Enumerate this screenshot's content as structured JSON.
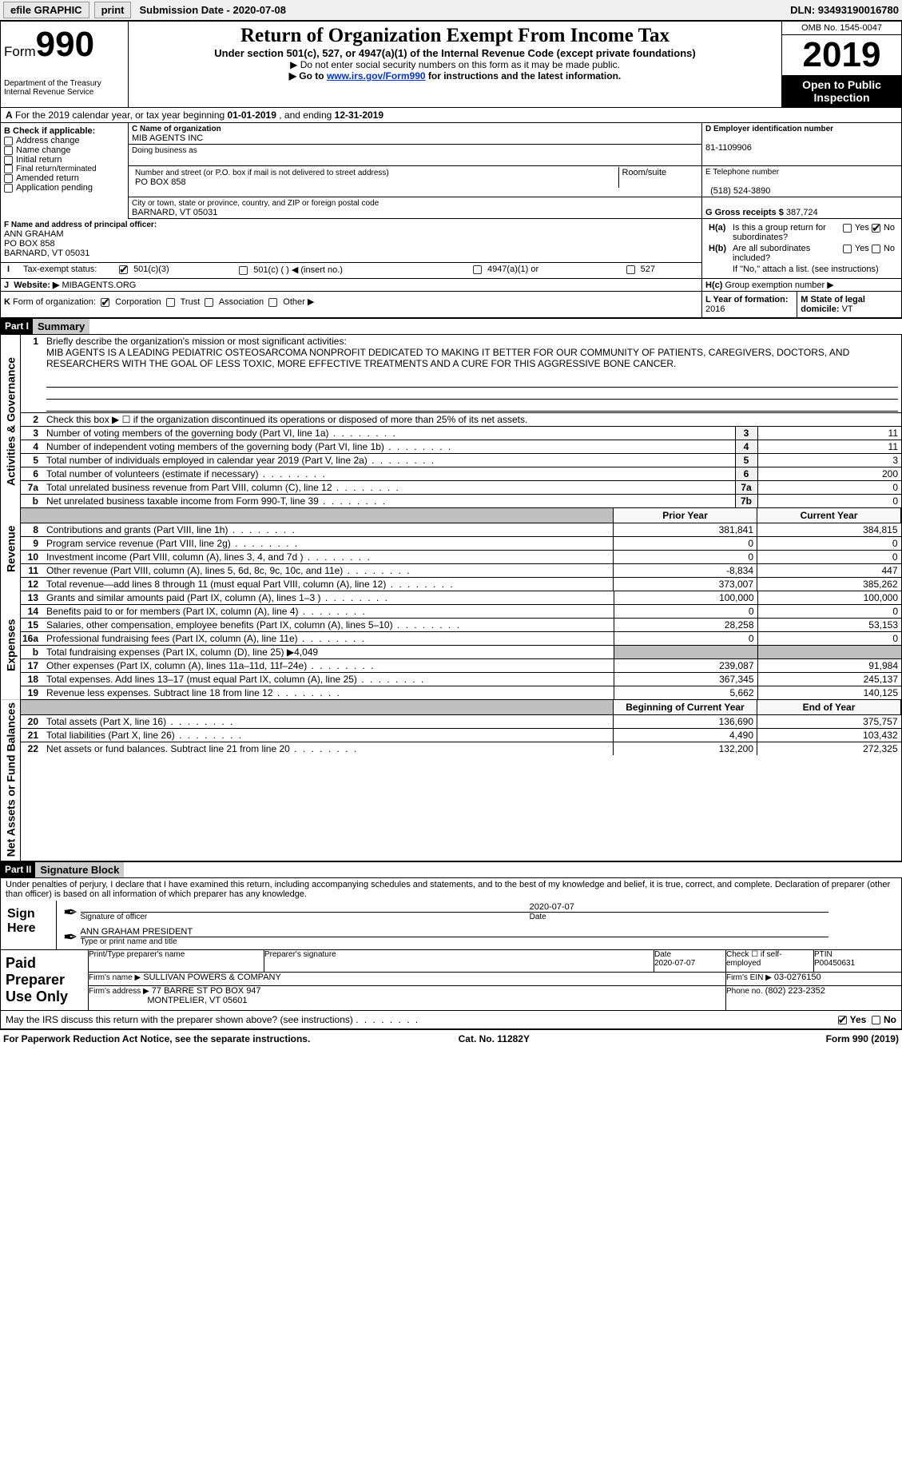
{
  "topbar": {
    "efile": "efile GRAPHIC",
    "print": "print",
    "submission": "Submission Date - 2020-07-08",
    "dln": "DLN: 93493190016780"
  },
  "header": {
    "form_label": "Form",
    "form_number": "990",
    "dept1": "Department of the Treasury",
    "dept2": "Internal Revenue Service",
    "title": "Return of Organization Exempt From Income Tax",
    "subtitle": "Under section 501(c), 527, or 4947(a)(1) of the Internal Revenue Code (except private foundations)",
    "note1": "▶ Do not enter social security numbers on this form as it may be made public.",
    "note2_pre": "▶ Go to ",
    "note2_link": "www.irs.gov/Form990",
    "note2_post": " for instructions and the latest information.",
    "omb": "OMB No. 1545-0047",
    "year": "2019",
    "inspect": "Open to Public Inspection"
  },
  "A": {
    "text_pre": "For the 2019 calendar year, or tax year beginning ",
    "begin": "01-01-2019",
    "mid": " , and ending ",
    "end": "12-31-2019"
  },
  "B": {
    "label": "B Check if applicable:",
    "opts": [
      "Address change",
      "Name change",
      "Initial return",
      "Final return/terminated",
      "Amended return",
      "Application pending"
    ]
  },
  "C": {
    "name_label": "C Name of organization",
    "name": "MIB AGENTS INC",
    "dba_label": "Doing business as",
    "addr_label": "Number and street (or P.O. box if mail is not delivered to street address)",
    "room_label": "Room/suite",
    "addr": "PO BOX 858",
    "city_label": "City or town, state or province, country, and ZIP or foreign postal code",
    "city": "BARNARD, VT  05031"
  },
  "D": {
    "label": "D Employer identification number",
    "value": "81-1109906"
  },
  "E": {
    "label": "E Telephone number",
    "value": "(518) 524-3890"
  },
  "G": {
    "label": "G Gross receipts $",
    "value": "387,724"
  },
  "F": {
    "label": "F Name and address of principal officer:",
    "name": "ANN GRAHAM",
    "addr": "PO BOX 858",
    "city": "BARNARD, VT  05031"
  },
  "H": {
    "a": "Is this a group return for subordinates?",
    "a_yes": "Yes",
    "a_no": "No",
    "b": "Are all subordinates included?",
    "b_note": "If \"No,\" attach a list. (see instructions)",
    "c": "Group exemption number ▶"
  },
  "I": {
    "label": "Tax-exempt status:",
    "c3": "501(c)(3)",
    "c_": "501(c) (  ) ◀ (insert no.)",
    "a1": "4947(a)(1) or",
    "s527": "527"
  },
  "J": {
    "label": "Website: ▶",
    "value": "MIBAGENTS.ORG"
  },
  "K": {
    "label": "Form of organization:",
    "corp": "Corporation",
    "trust": "Trust",
    "assoc": "Association",
    "other": "Other ▶"
  },
  "L": {
    "label": "L Year of formation:",
    "value": "2016"
  },
  "M": {
    "label": "M State of legal domicile:",
    "value": "VT"
  },
  "part1": {
    "hdr": "Part I",
    "title": "Summary",
    "mission_label": "Briefly describe the organization's mission or most significant activities:",
    "mission": "MIB AGENTS IS A LEADING PEDIATRIC OSTEOSARCOMA NONPROFIT DEDICATED TO MAKING IT BETTER FOR OUR COMMUNITY OF PATIENTS, CAREGIVERS, DOCTORS, AND RESEARCHERS WITH THE GOAL OF LESS TOXIC, MORE EFFECTIVE TREATMENTS AND A CURE FOR THIS AGGRESSIVE BONE CANCER.",
    "line2": "Check this box ▶ ☐ if the organization discontinued its operations or disposed of more than 25% of its net assets.",
    "vlabels": {
      "gov": "Activities & Governance",
      "rev": "Revenue",
      "exp": "Expenses",
      "net": "Net Assets or Fund Balances"
    },
    "rows_gov": [
      {
        "n": "3",
        "t": "Number of voting members of the governing body (Part VI, line 1a)",
        "box": "3",
        "v": "11"
      },
      {
        "n": "4",
        "t": "Number of independent voting members of the governing body (Part VI, line 1b)",
        "box": "4",
        "v": "11"
      },
      {
        "n": "5",
        "t": "Total number of individuals employed in calendar year 2019 (Part V, line 2a)",
        "box": "5",
        "v": "3"
      },
      {
        "n": "6",
        "t": "Total number of volunteers (estimate if necessary)",
        "box": "6",
        "v": "200"
      },
      {
        "n": "7a",
        "t": "Total unrelated business revenue from Part VIII, column (C), line 12",
        "box": "7a",
        "v": "0"
      },
      {
        "n": "b",
        "t": "Net unrelated business taxable income from Form 990-T, line 39",
        "box": "7b",
        "v": "0"
      }
    ],
    "col_prior": "Prior Year",
    "col_current": "Current Year",
    "rows_rev": [
      {
        "n": "8",
        "t": "Contributions and grants (Part VIII, line 1h)",
        "p": "381,841",
        "c": "384,815"
      },
      {
        "n": "9",
        "t": "Program service revenue (Part VIII, line 2g)",
        "p": "0",
        "c": "0"
      },
      {
        "n": "10",
        "t": "Investment income (Part VIII, column (A), lines 3, 4, and 7d )",
        "p": "0",
        "c": "0"
      },
      {
        "n": "11",
        "t": "Other revenue (Part VIII, column (A), lines 5, 6d, 8c, 9c, 10c, and 11e)",
        "p": "-8,834",
        "c": "447"
      },
      {
        "n": "12",
        "t": "Total revenue—add lines 8 through 11 (must equal Part VIII, column (A), line 12)",
        "p": "373,007",
        "c": "385,262"
      }
    ],
    "rows_exp": [
      {
        "n": "13",
        "t": "Grants and similar amounts paid (Part IX, column (A), lines 1–3 )",
        "p": "100,000",
        "c": "100,000"
      },
      {
        "n": "14",
        "t": "Benefits paid to or for members (Part IX, column (A), line 4)",
        "p": "0",
        "c": "0"
      },
      {
        "n": "15",
        "t": "Salaries, other compensation, employee benefits (Part IX, column (A), lines 5–10)",
        "p": "28,258",
        "c": "53,153"
      },
      {
        "n": "16a",
        "t": "Professional fundraising fees (Part IX, column (A), line 11e)",
        "p": "0",
        "c": "0"
      },
      {
        "n": "b",
        "t": "Total fundraising expenses (Part IX, column (D), line 25) ▶4,049",
        "p": "",
        "c": "",
        "gray": true
      },
      {
        "n": "17",
        "t": "Other expenses (Part IX, column (A), lines 11a–11d, 11f–24e)",
        "p": "239,087",
        "c": "91,984"
      },
      {
        "n": "18",
        "t": "Total expenses. Add lines 13–17 (must equal Part IX, column (A), line 25)",
        "p": "367,345",
        "c": "245,137"
      },
      {
        "n": "19",
        "t": "Revenue less expenses. Subtract line 18 from line 12",
        "p": "5,662",
        "c": "140,125"
      }
    ],
    "col_begin": "Beginning of Current Year",
    "col_end": "End of Year",
    "rows_net": [
      {
        "n": "20",
        "t": "Total assets (Part X, line 16)",
        "p": "136,690",
        "c": "375,757"
      },
      {
        "n": "21",
        "t": "Total liabilities (Part X, line 26)",
        "p": "4,490",
        "c": "103,432"
      },
      {
        "n": "22",
        "t": "Net assets or fund balances. Subtract line 21 from line 20",
        "p": "132,200",
        "c": "272,325"
      }
    ]
  },
  "part2": {
    "hdr": "Part II",
    "title": "Signature Block",
    "perjury": "Under penalties of perjury, I declare that I have examined this return, including accompanying schedules and statements, and to the best of my knowledge and belief, it is true, correct, and complete. Declaration of preparer (other than officer) is based on all information of which preparer has any knowledge.",
    "sign_here": "Sign Here",
    "sig_officer": "Signature of officer",
    "sig_date_val": "2020-07-07",
    "sig_date": "Date",
    "sig_name": "ANN GRAHAM PRESIDENT",
    "sig_name_label": "Type or print name and title",
    "paid": "Paid Preparer Use Only",
    "prep_name_label": "Print/Type preparer's name",
    "prep_sig_label": "Preparer's signature",
    "prep_date_label": "Date",
    "prep_date": "2020-07-07",
    "prep_check": "Check ☐ if self-employed",
    "ptin_label": "PTIN",
    "ptin": "P00450631",
    "firm_name_label": "Firm's name    ▶",
    "firm_name": "SULLIVAN POWERS & COMPANY",
    "firm_ein_label": "Firm's EIN ▶",
    "firm_ein": "03-0276150",
    "firm_addr_label": "Firm's address ▶",
    "firm_addr1": "77 BARRE ST PO BOX 947",
    "firm_addr2": "MONTPELIER, VT  05601",
    "phone_label": "Phone no.",
    "phone": "(802) 223-2352",
    "discuss": "May the IRS discuss this return with the preparer shown above? (see instructions)",
    "yes": "Yes",
    "no": "No"
  },
  "footer": {
    "left": "For Paperwork Reduction Act Notice, see the separate instructions.",
    "mid": "Cat. No. 11282Y",
    "right": "Form 990 (2019)"
  }
}
